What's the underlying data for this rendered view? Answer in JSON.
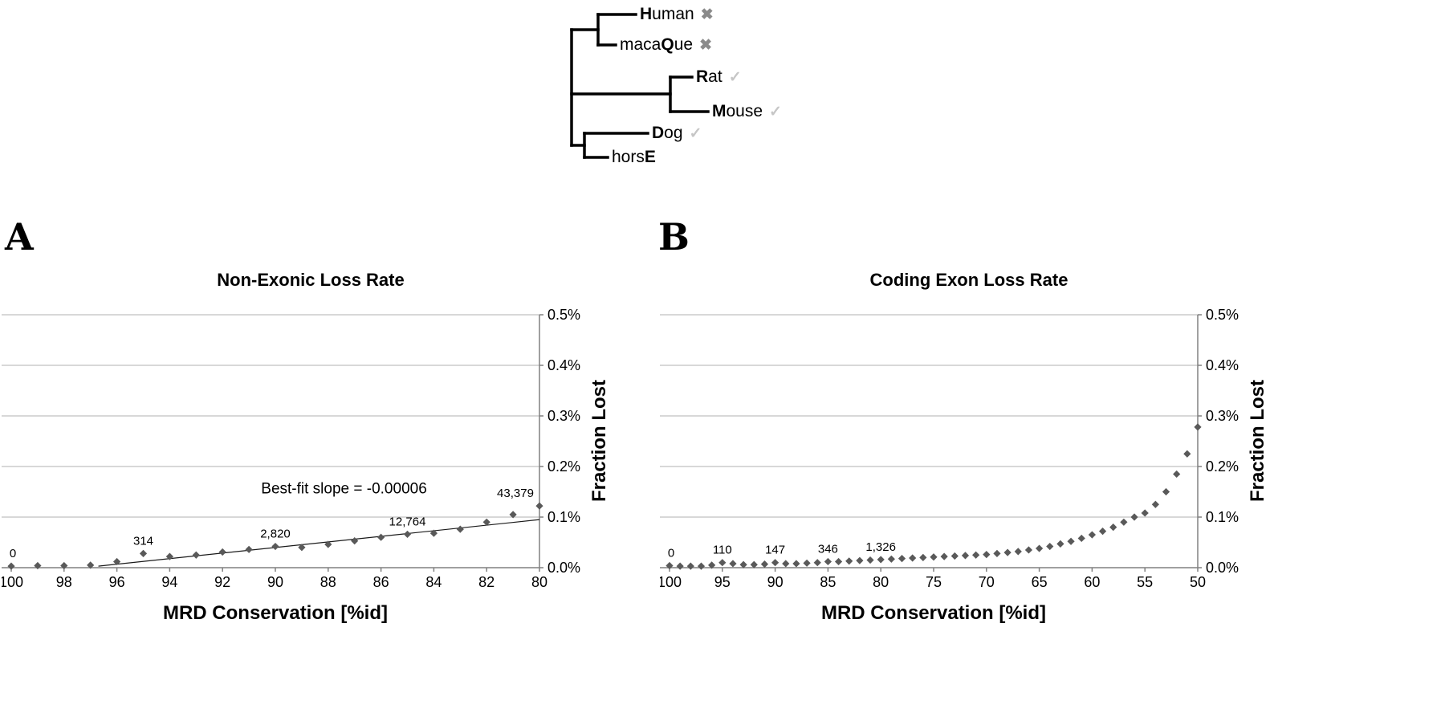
{
  "figure": {
    "panel_a_letter": "A",
    "panel_b_letter": "B"
  },
  "tree": {
    "species": [
      {
        "pre": "",
        "bold": "H",
        "post": "uman",
        "mark": "✖"
      },
      {
        "pre": "maca",
        "bold": "Q",
        "post": "ue",
        "mark": "✖"
      },
      {
        "pre": "",
        "bold": "R",
        "post": "at",
        "mark": "✓"
      },
      {
        "pre": "",
        "bold": "M",
        "post": "ouse",
        "mark": "✓"
      },
      {
        "pre": "",
        "bold": "D",
        "post": "og",
        "mark": "✓"
      },
      {
        "pre": "hors",
        "bold": "E",
        "post": ""
      }
    ]
  },
  "colors": {
    "point": "#595959",
    "gridline": "#b0b0b0",
    "axis": "#808080",
    "fit_line": "#1a1a1a",
    "branch": "#000000",
    "cross_mark": "#8a8a8a",
    "check_mark": "#c6c6c6"
  },
  "chart_data": [
    {
      "panel": "A",
      "type": "scatter",
      "title": "Non-Exonic Loss Rate",
      "xlabel": "MRD Conservation [%id]",
      "ylabel": "Fraction Lost",
      "x_reversed": true,
      "xlim": [
        100,
        80
      ],
      "x_ticks": [
        100,
        98,
        96,
        94,
        92,
        90,
        88,
        86,
        84,
        82,
        80
      ],
      "ylim": [
        0,
        0.5
      ],
      "y_ticks": [
        {
          "v": 0.0,
          "label": "0.0%"
        },
        {
          "v": 0.1,
          "label": "0.1%"
        },
        {
          "v": 0.2,
          "label": "0.2%"
        },
        {
          "v": 0.3,
          "label": "0.3%"
        },
        {
          "v": 0.4,
          "label": "0.4%"
        },
        {
          "v": 0.5,
          "label": "0.5%"
        }
      ],
      "x": [
        100,
        99,
        98,
        97,
        96,
        95,
        94,
        93,
        92,
        91,
        90,
        89,
        88,
        87,
        86,
        85,
        84,
        83,
        82,
        81,
        80
      ],
      "y": [
        0.003,
        0.004,
        0.004,
        0.005,
        0.012,
        0.028,
        0.022,
        0.025,
        0.031,
        0.036,
        0.042,
        0.04,
        0.046,
        0.053,
        0.06,
        0.066,
        0.068,
        0.076,
        0.09,
        0.105,
        0.122
      ],
      "point_labels": [
        {
          "x": 100,
          "text": "0"
        },
        {
          "x": 95,
          "text": "314"
        },
        {
          "x": 90,
          "text": "2,820"
        },
        {
          "x": 85,
          "text": "12,764"
        },
        {
          "x": 80,
          "text": "43,379"
        }
      ],
      "annotation": {
        "text": "Best-fit slope = -0.00006",
        "x": 87.4,
        "y": 0.147
      },
      "fit_line": {
        "x1": 96.7,
        "y1": 0.003,
        "x2": 80,
        "y2": 0.095
      },
      "grid": true,
      "legend": "none"
    },
    {
      "panel": "B",
      "type": "scatter",
      "title": "Coding Exon Loss Rate",
      "xlabel": "MRD Conservation [%id]",
      "ylabel": "Fraction Lost",
      "x_reversed": true,
      "xlim": [
        100,
        50
      ],
      "x_ticks": [
        100,
        95,
        90,
        85,
        80,
        75,
        70,
        65,
        60,
        55,
        50
      ],
      "ylim": [
        0,
        0.5
      ],
      "y_ticks": [
        {
          "v": 0.0,
          "label": "0.0%"
        },
        {
          "v": 0.1,
          "label": "0.1%"
        },
        {
          "v": 0.2,
          "label": "0.2%"
        },
        {
          "v": 0.3,
          "label": "0.3%"
        },
        {
          "v": 0.4,
          "label": "0.4%"
        },
        {
          "v": 0.5,
          "label": "0.5%"
        }
      ],
      "x": [
        100,
        99,
        98,
        97,
        96,
        95,
        94,
        93,
        92,
        91,
        90,
        89,
        88,
        87,
        86,
        85,
        84,
        83,
        82,
        81,
        80,
        79,
        78,
        77,
        76,
        75,
        74,
        73,
        72,
        71,
        70,
        69,
        68,
        67,
        66,
        65,
        64,
        63,
        62,
        61,
        60,
        59,
        58,
        57,
        56,
        55,
        54,
        53,
        52,
        51,
        50
      ],
      "y": [
        0.004,
        0.003,
        0.003,
        0.003,
        0.005,
        0.01,
        0.008,
        0.006,
        0.006,
        0.007,
        0.01,
        0.008,
        0.008,
        0.009,
        0.01,
        0.012,
        0.012,
        0.013,
        0.014,
        0.015,
        0.016,
        0.017,
        0.018,
        0.019,
        0.02,
        0.021,
        0.022,
        0.023,
        0.024,
        0.025,
        0.026,
        0.028,
        0.03,
        0.032,
        0.035,
        0.038,
        0.042,
        0.047,
        0.052,
        0.058,
        0.065,
        0.072,
        0.08,
        0.09,
        0.1,
        0.108,
        0.125,
        0.15,
        0.185,
        0.225,
        0.278
      ],
      "point_labels": [
        {
          "x": 100,
          "text": "0"
        },
        {
          "x": 95,
          "text": "110"
        },
        {
          "x": 90,
          "text": "147"
        },
        {
          "x": 85,
          "text": "346"
        },
        {
          "x": 80,
          "text": "1,326"
        }
      ],
      "grid": true,
      "legend": "none"
    }
  ]
}
